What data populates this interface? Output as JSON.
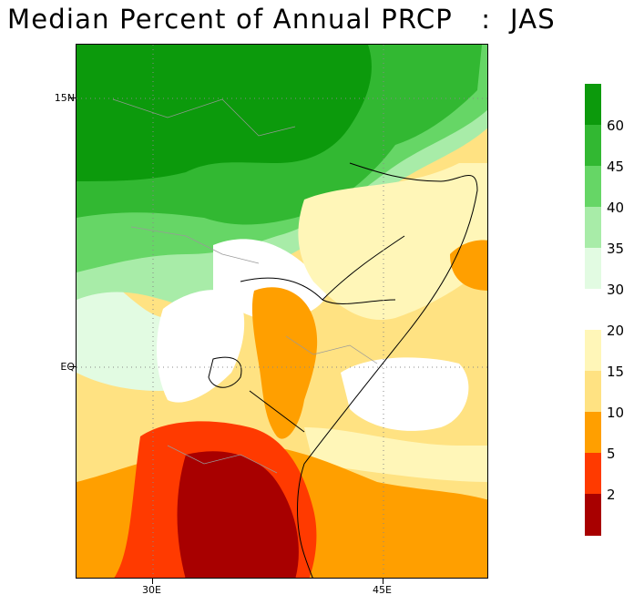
{
  "title": "Median Percent of Annual PRCP   :  JAS",
  "axes": {
    "lat_labels": [
      "15N",
      "EQ"
    ],
    "lon_labels": [
      "30E",
      "45E"
    ]
  },
  "legend": {
    "labels": [
      "60",
      "45",
      "40",
      "35",
      "30",
      "20",
      "15",
      "10",
      "5",
      "2"
    ],
    "colors": [
      "#0c9a0c",
      "#32b832",
      "#66d666",
      "#a8eca8",
      "#e2fbe2",
      "#ffffff",
      "#fff6b8",
      "#ffe282",
      "#ff9f00",
      "#ff3a00",
      "#a80000"
    ]
  },
  "colors": {
    "dark_green": "#0c9a0c",
    "green": "#32b832",
    "light_green": "#66d666",
    "pale_green": "#a8eca8",
    "very_pale_green": "#e2fbe2",
    "white": "#ffffff",
    "pale_yellow": "#fff6b8",
    "yellow": "#ffe282",
    "orange": "#ff9f00",
    "red": "#ff3a00",
    "dark_red": "#a80000"
  }
}
